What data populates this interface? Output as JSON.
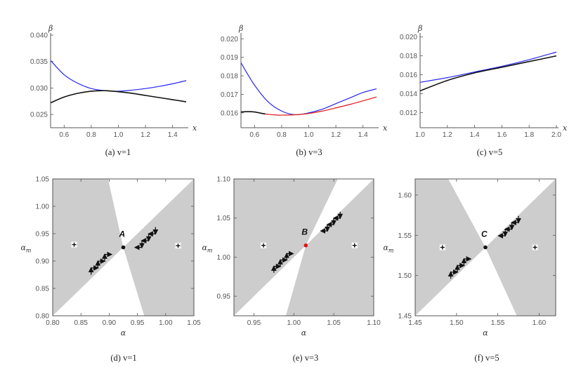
{
  "colors": {
    "blue": "#2626ee",
    "black": "#111111",
    "red": "#e01515",
    "shade": "#cdcdcd",
    "axis": "#555555"
  },
  "chart_data": [
    {
      "type": "line",
      "caption": "(a)  v=1",
      "xlabel": "x",
      "ylabel": "β",
      "xlim": [
        0.5,
        1.5
      ],
      "ylim": [
        0.0225,
        0.04
      ],
      "xticks": [
        "0.6",
        "0.8",
        "1.0",
        "1.2",
        "1.4"
      ],
      "yticks": [
        "0.025",
        "0.030",
        "0.035",
        "0.040"
      ],
      "series": [
        {
          "name": "blue",
          "color": "blue",
          "x": [
            0.5,
            0.6,
            0.7,
            0.8,
            0.9,
            1.0,
            1.1,
            1.2,
            1.3,
            1.4,
            1.5
          ],
          "y": [
            0.0352,
            0.0325,
            0.0309,
            0.0299,
            0.0295,
            0.0294,
            0.0296,
            0.0299,
            0.0303,
            0.0308,
            0.0314
          ]
        },
        {
          "name": "black",
          "color": "black",
          "x": [
            0.5,
            0.6,
            0.7,
            0.8,
            0.9,
            1.0,
            1.1,
            1.2,
            1.3,
            1.4,
            1.5
          ],
          "y": [
            0.0272,
            0.0283,
            0.029,
            0.0294,
            0.0295,
            0.0293,
            0.029,
            0.0286,
            0.0282,
            0.0278,
            0.0274
          ]
        }
      ]
    },
    {
      "type": "line",
      "caption": "(b)  v=3",
      "xlabel": "x",
      "ylabel": "β",
      "xlim": [
        0.5,
        1.5
      ],
      "ylim": [
        0.0152,
        0.0202
      ],
      "xticks": [
        "0.6",
        "0.8",
        "1.0",
        "1.2",
        "1.4"
      ],
      "yticks": [
        "0.016",
        "0.017",
        "0.018",
        "0.019",
        "0.020"
      ],
      "series": [
        {
          "name": "blue",
          "color": "blue",
          "x": [
            0.5,
            0.6,
            0.7,
            0.8,
            0.9,
            1.0,
            1.1,
            1.2,
            1.3,
            1.4,
            1.5
          ],
          "y": [
            0.0187,
            0.0175,
            0.0166,
            0.0161,
            0.0159,
            0.016,
            0.0162,
            0.0165,
            0.0168,
            0.0171,
            0.0173
          ]
        },
        {
          "name": "black",
          "color": "black",
          "x": [
            0.5,
            0.55,
            0.6,
            0.65,
            0.68
          ],
          "y": [
            0.01605,
            0.01607,
            0.01605,
            0.01598,
            0.01594
          ]
        },
        {
          "name": "red",
          "color": "red",
          "x": [
            0.68,
            0.75,
            0.8,
            0.9,
            1.0,
            1.1,
            1.2,
            1.3,
            1.4,
            1.5
          ],
          "y": [
            0.01594,
            0.01589,
            0.01588,
            0.0159,
            0.01597,
            0.0161,
            0.01627,
            0.01645,
            0.01665,
            0.01686
          ]
        }
      ]
    },
    {
      "type": "line",
      "caption": "(c)  v=5",
      "xlabel": "x",
      "ylabel": "β",
      "xlim": [
        1.0,
        2.0
      ],
      "ylim": [
        0.0104,
        0.0202
      ],
      "xticks": [
        "1.0",
        "1.2",
        "1.4",
        "1.6",
        "1.8",
        "2.0"
      ],
      "yticks": [
        "0.012",
        "0.014",
        "0.016",
        "0.018",
        "0.020"
      ],
      "series": [
        {
          "name": "blue",
          "color": "blue",
          "x": [
            1.0,
            1.2,
            1.4,
            1.6,
            1.8,
            2.0
          ],
          "y": [
            0.0152,
            0.0157,
            0.0163,
            0.0169,
            0.0176,
            0.0184
          ]
        },
        {
          "name": "black",
          "color": "black",
          "x": [
            1.0,
            1.2,
            1.4,
            1.6,
            1.8,
            2.0
          ],
          "y": [
            0.0143,
            0.0154,
            0.0162,
            0.0168,
            0.0174,
            0.018
          ]
        }
      ]
    },
    {
      "type": "region",
      "caption": "(d)  v=1",
      "xlabel": "α",
      "ylabel": "αm",
      "xlim": [
        0.8,
        1.05
      ],
      "ylim": [
        0.8,
        1.05
      ],
      "xticks": [
        "0.80",
        "0.85",
        "0.90",
        "0.95",
        "1.00",
        "1.05"
      ],
      "yticks": [
        "0.80",
        "0.85",
        "0.90",
        "0.95",
        "1.00",
        "1.05"
      ],
      "point": {
        "label": "A",
        "x": 0.925,
        "y": 0.925,
        "color": "black"
      },
      "regions": [
        {
          "points": [
            [
              0.8,
              1.05
            ],
            [
              0.898,
              1.05
            ],
            [
              0.925,
              0.925
            ],
            [
              0.8,
              0.8
            ]
          ]
        },
        {
          "points": [
            [
              1.05,
              1.05
            ],
            [
              1.05,
              0.8
            ],
            [
              0.962,
              0.8
            ],
            [
              0.925,
              0.925
            ]
          ]
        }
      ],
      "plus_marks": [
        [
          0.838,
          0.93
        ],
        [
          1.022,
          0.928
        ]
      ],
      "left_arrows": {
        "start": [
          0.868,
          0.875
        ],
        "step": 0.012,
        "count": 3
      },
      "right_arrows": {
        "start": [
          0.982,
          0.962
        ],
        "step": 0.012,
        "count": 3
      }
    },
    {
      "type": "region",
      "caption": "(e)  v=3",
      "xlabel": "α",
      "ylabel": "αm",
      "xlim": [
        0.925,
        1.1
      ],
      "ylim": [
        0.925,
        1.1
      ],
      "xticks": [
        "0.95",
        "1.00",
        "1.05",
        "1.10"
      ],
      "yticks": [
        "0.95",
        "1.00",
        "1.05",
        "1.10"
      ],
      "point": {
        "label": "B",
        "x": 1.015,
        "y": 1.015,
        "color": "red"
      },
      "regions": [
        {
          "points": [
            [
              0.925,
              1.1
            ],
            [
              1.055,
              1.1
            ],
            [
              1.015,
              1.015
            ],
            [
              0.925,
              0.925
            ]
          ]
        },
        {
          "points": [
            [
              1.1,
              1.1
            ],
            [
              1.1,
              0.925
            ],
            [
              0.99,
              0.925
            ],
            [
              1.015,
              1.015
            ]
          ]
        }
      ],
      "plus_marks": [
        [
          0.962,
          1.015
        ],
        [
          1.076,
          1.015
        ]
      ],
      "left_arrows": {
        "start": [
          0.975,
          0.98
        ],
        "step": 0.008,
        "count": 3
      },
      "right_arrows": {
        "start": [
          1.058,
          1.058
        ],
        "step": 0.008,
        "count": 3
      }
    },
    {
      "type": "region",
      "caption": "(f)  v=5",
      "xlabel": "α",
      "ylabel": "αm",
      "xlim": [
        1.45,
        1.62
      ],
      "ylim": [
        1.45,
        1.62
      ],
      "xticks": [
        "1.45",
        "1.50",
        "1.55",
        "1.60"
      ],
      "yticks": [
        "1.45",
        "1.50",
        "1.55",
        "1.60"
      ],
      "point": {
        "label": "C",
        "x": 1.535,
        "y": 1.535,
        "color": "black"
      },
      "regions": [
        {
          "points": [
            [
              1.45,
              1.62
            ],
            [
              1.49,
              1.62
            ],
            [
              1.535,
              1.535
            ],
            [
              1.45,
              1.45
            ]
          ]
        },
        {
          "points": [
            [
              1.62,
              1.62
            ],
            [
              1.62,
              1.45
            ],
            [
              1.573,
              1.45
            ],
            [
              1.535,
              1.535
            ]
          ]
        }
      ],
      "plus_marks": [
        [
          1.483,
          1.535
        ],
        [
          1.595,
          1.535
        ]
      ],
      "left_arrows": {
        "start": [
          1.493,
          1.496
        ],
        "step": 0.008,
        "count": 3
      },
      "right_arrows": {
        "start": [
          1.575,
          1.574
        ],
        "step": 0.008,
        "count": 3
      }
    }
  ]
}
